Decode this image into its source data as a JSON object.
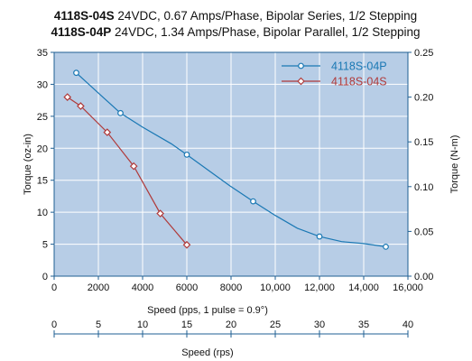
{
  "chart_data": {
    "type": "line",
    "title_lines": [
      {
        "model": "4118S-04S",
        "text": " 24VDC, 0.67 Amps/Phase, Bipolar Series, 1/2 Stepping"
      },
      {
        "model": "4118S-04P",
        "text": " 24VDC, 1.34 Amps/Phase, Bipolar Parallel, 1/2 Stepping"
      }
    ],
    "xlabel": "Speed (pps, 1 pulse = 0.9°)",
    "xlabel2": "Speed (rps)",
    "ylabel": "Torque (oz-in)",
    "ylabel2": "Torque (N-m)",
    "xlim": [
      0,
      16000
    ],
    "ylim": [
      0,
      35
    ],
    "x2lim": [
      0,
      40
    ],
    "y2lim": [
      0,
      0.25
    ],
    "xticks": [
      "0",
      "2000",
      "4000",
      "6000",
      "8000",
      "10,000",
      "12,000",
      "14,000",
      "16,000"
    ],
    "yticks": [
      "0",
      "5",
      "10",
      "15",
      "20",
      "25",
      "30",
      "35"
    ],
    "x2ticks": [
      "0",
      "5",
      "10",
      "15",
      "20",
      "25",
      "30",
      "35",
      "40"
    ],
    "y2ticks": [
      "0.00",
      "0.05",
      "0.10",
      "0.15",
      "0.20",
      "0.25"
    ],
    "legend_position": "top-right",
    "series": [
      {
        "name": "4118S-04P",
        "color": "#1a78b4",
        "marker": "circle",
        "x": [
          1000,
          2200,
          3000,
          4000,
          5300,
          6000,
          7000,
          8000,
          9000,
          10000,
          11000,
          12000,
          13000,
          14000,
          15000
        ],
        "y": [
          31.8,
          28,
          25.5,
          23.3,
          20.7,
          19,
          16.5,
          14,
          11.7,
          9.5,
          7.5,
          6.2,
          5.4,
          5.1,
          4.6
        ],
        "markers": [
          0,
          2,
          5,
          8,
          11,
          14
        ]
      },
      {
        "name": "4118S-04S",
        "color": "#b03a3a",
        "marker": "diamond",
        "x": [
          600,
          1200,
          2400,
          3600,
          4800,
          6000
        ],
        "y": [
          28,
          26.6,
          22.5,
          17.2,
          9.8,
          4.9
        ],
        "markers": [
          0,
          1,
          2,
          3,
          4,
          5
        ]
      }
    ]
  }
}
